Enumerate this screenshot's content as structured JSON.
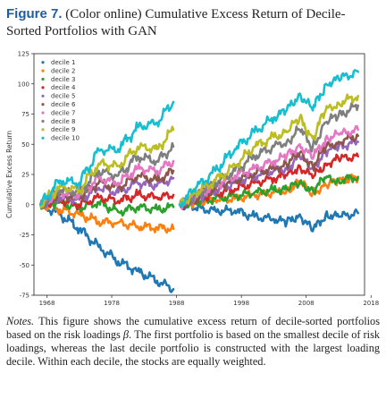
{
  "figure": {
    "label": "Figure 7.",
    "title": "(Color online) Cumulative Excess Return of Decile-Sorted Portfolios with GAN"
  },
  "notes": {
    "label": "Notes.",
    "text_before_beta": "This figure shows the cumulative excess return of decile-sorted portfolios based on the risk loadings ",
    "beta": "β",
    "text_after_beta": ". The first portfolio is based on the smallest decile of risk loadings, whereas the last decile portfolio is constructed with the largest loading decile. Within each decile, the stocks are equally weighted."
  },
  "chart_data": {
    "type": "line",
    "ylabel": "Cumulative Excess Return",
    "xlabel": "",
    "xlim": [
      1966,
      2017
    ],
    "ylim": [
      -75,
      125
    ],
    "xticks": [
      1968,
      1978,
      1988,
      1998,
      2008,
      2018
    ],
    "yticks": [
      -75,
      -50,
      -25,
      0,
      25,
      50,
      75,
      100,
      125
    ],
    "legend_position": "top-left",
    "grid": false,
    "series": [
      {
        "name": "decile 1",
        "color": "#1f77b4",
        "x": [
          1967,
          1970,
          1973,
          1976,
          1979,
          1982,
          1985,
          1987.5,
          1988.5,
          1991,
          1994,
          1997,
          2000,
          2003,
          2005,
          2007,
          2009,
          2011,
          2013,
          2016
        ],
        "y": [
          0,
          -8,
          -20,
          -35,
          -47,
          -55,
          -63,
          -70,
          0,
          -3,
          -5,
          -5,
          -10,
          -12,
          -15,
          -8,
          -22,
          -8,
          -10,
          -7
        ]
      },
      {
        "name": "decile 2",
        "color": "#ff7f0e",
        "x": [
          1967,
          1970,
          1973,
          1976,
          1979,
          1982,
          1985,
          1987.5,
          1988.5,
          1991,
          1994,
          1997,
          2000,
          2003,
          2005,
          2007,
          2009,
          2011,
          2013,
          2016
        ],
        "y": [
          0,
          -4,
          -8,
          -14,
          -15,
          -18,
          -19,
          -20,
          0,
          2,
          4,
          5,
          8,
          10,
          12,
          18,
          10,
          16,
          20,
          22
        ]
      },
      {
        "name": "decile 3",
        "color": "#2ca02c",
        "x": [
          1967,
          1970,
          1973,
          1976,
          1979,
          1982,
          1985,
          1987.5,
          1988.5,
          1991,
          1994,
          1997,
          2000,
          2003,
          2005,
          2007,
          2009,
          2011,
          2013,
          2016
        ],
        "y": [
          0,
          2,
          -3,
          2,
          -6,
          -2,
          -4,
          -2,
          0,
          2,
          5,
          7,
          10,
          12,
          13,
          18,
          12,
          22,
          20,
          23
        ]
      },
      {
        "name": "decile 4",
        "color": "#d62728",
        "x": [
          1967,
          1970,
          1973,
          1976,
          1979,
          1982,
          1985,
          1987.5,
          1988.5,
          1991,
          1994,
          1997,
          2000,
          2003,
          2005,
          2007,
          2009,
          2011,
          2013,
          2016
        ],
        "y": [
          0,
          4,
          0,
          6,
          3,
          8,
          6,
          8,
          0,
          4,
          9,
          13,
          18,
          22,
          24,
          32,
          22,
          34,
          38,
          40
        ]
      },
      {
        "name": "decile 5",
        "color": "#9467bd",
        "x": [
          1967,
          1970,
          1973,
          1976,
          1979,
          1982,
          1985,
          1987.5,
          1988.5,
          1991,
          1994,
          1997,
          2000,
          2003,
          2005,
          2007,
          2009,
          2011,
          2013,
          2016
        ],
        "y": [
          0,
          6,
          4,
          14,
          10,
          18,
          16,
          22,
          0,
          5,
          12,
          18,
          24,
          28,
          30,
          40,
          30,
          44,
          48,
          52
        ]
      },
      {
        "name": "decile 6",
        "color": "#8c564b",
        "x": [
          1967,
          1970,
          1973,
          1976,
          1979,
          1982,
          1985,
          1987.5,
          1988.5,
          1991,
          1994,
          1997,
          2000,
          2003,
          2005,
          2007,
          2009,
          2011,
          2013,
          2016
        ],
        "y": [
          0,
          8,
          6,
          18,
          14,
          24,
          20,
          28,
          0,
          6,
          14,
          20,
          26,
          30,
          33,
          43,
          32,
          47,
          52,
          57
        ]
      },
      {
        "name": "decile 7",
        "color": "#e377c2",
        "x": [
          1967,
          1970,
          1973,
          1976,
          1979,
          1982,
          1985,
          1987.5,
          1988.5,
          1991,
          1994,
          1997,
          2000,
          2003,
          2005,
          2007,
          2009,
          2011,
          2013,
          2016
        ],
        "y": [
          0,
          10,
          8,
          22,
          18,
          30,
          28,
          36,
          0,
          7,
          16,
          24,
          30,
          36,
          40,
          50,
          38,
          55,
          58,
          62
        ]
      },
      {
        "name": "decile 8",
        "color": "#7f7f7f",
        "x": [
          1967,
          1970,
          1973,
          1976,
          1979,
          1982,
          1985,
          1987.5,
          1988.5,
          1991,
          1994,
          1997,
          2000,
          2003,
          2005,
          2007,
          2009,
          2011,
          2013,
          2016
        ],
        "y": [
          0,
          12,
          10,
          28,
          24,
          40,
          36,
          48,
          0,
          8,
          18,
          28,
          40,
          48,
          52,
          62,
          48,
          68,
          74,
          82
        ]
      },
      {
        "name": "decile 9",
        "color": "#bcbd22",
        "x": [
          1967,
          1970,
          1973,
          1976,
          1979,
          1982,
          1985,
          1987.5,
          1988.5,
          1991,
          1994,
          1997,
          2000,
          2003,
          2005,
          2007,
          2009,
          2011,
          2013,
          2016
        ],
        "y": [
          0,
          15,
          12,
          34,
          32,
          48,
          46,
          62,
          0,
          10,
          20,
          32,
          48,
          56,
          60,
          72,
          55,
          78,
          84,
          90
        ]
      },
      {
        "name": "decile 10",
        "color": "#17becf",
        "x": [
          1967,
          1970,
          1973,
          1976,
          1979,
          1982,
          1985,
          1987.5,
          1988.5,
          1991,
          1994,
          1997,
          2000,
          2003,
          2005,
          2007,
          2009,
          2011,
          2013,
          2016
        ],
        "y": [
          0,
          20,
          18,
          45,
          46,
          64,
          68,
          85,
          0,
          14,
          28,
          46,
          60,
          72,
          78,
          92,
          78,
          100,
          104,
          110
        ]
      }
    ]
  }
}
